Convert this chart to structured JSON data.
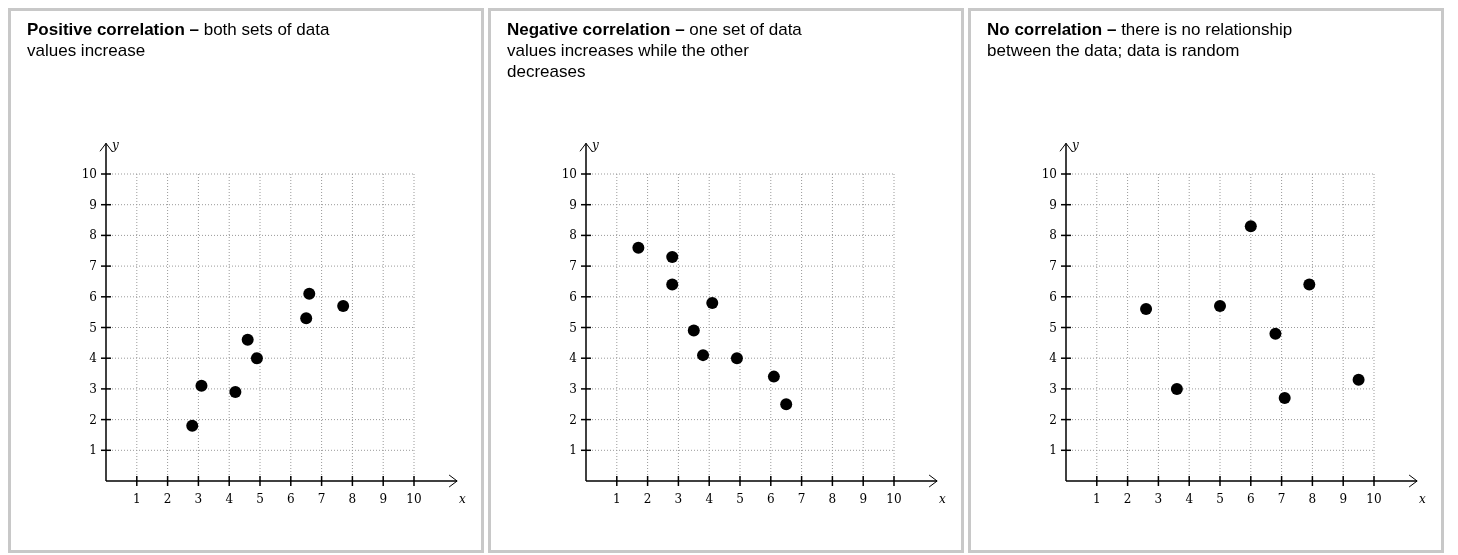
{
  "chart_data": [
    {
      "type": "scatter",
      "title": "Positive correlation – both sets of data values increase",
      "xlabel": "x",
      "ylabel": "y",
      "xlim": [
        0,
        11.4
      ],
      "ylim": [
        0,
        11
      ],
      "xticks": [
        1,
        2,
        3,
        4,
        5,
        6,
        7,
        8,
        9,
        10
      ],
      "yticks": [
        1,
        2,
        3,
        4,
        5,
        6,
        7,
        8,
        9,
        10
      ],
      "grid": true,
      "marker": "circle",
      "series": [
        {
          "color": "#000000",
          "x": [
            2.8,
            3.1,
            4.2,
            4.6,
            4.9,
            6.5,
            6.6,
            7.7
          ],
          "values": [
            1.8,
            3.1,
            2.9,
            4.6,
            4.0,
            5.3,
            6.1,
            5.7
          ]
        }
      ]
    },
    {
      "type": "scatter",
      "title": "Negative correlation – one set of data values increases while the other decreases",
      "xlabel": "x",
      "ylabel": "y",
      "xlim": [
        0,
        11.4
      ],
      "ylim": [
        0,
        11
      ],
      "xticks": [
        1,
        2,
        3,
        4,
        5,
        6,
        7,
        8,
        9,
        10
      ],
      "yticks": [
        1,
        2,
        3,
        4,
        5,
        6,
        7,
        8,
        9,
        10
      ],
      "grid": true,
      "marker": "circle",
      "series": [
        {
          "color": "#000000",
          "x": [
            1.7,
            2.8,
            2.8,
            3.5,
            3.8,
            4.1,
            4.9,
            6.1,
            6.5
          ],
          "values": [
            7.6,
            7.3,
            6.4,
            4.9,
            4.1,
            5.8,
            4.0,
            3.4,
            2.5
          ]
        }
      ]
    },
    {
      "type": "scatter",
      "title": "No correlation – there is no relationship between the data; data is random",
      "xlabel": "x",
      "ylabel": "y",
      "xlim": [
        0,
        11.4
      ],
      "ylim": [
        0,
        11
      ],
      "xticks": [
        1,
        2,
        3,
        4,
        5,
        6,
        7,
        8,
        9,
        10
      ],
      "yticks": [
        1,
        2,
        3,
        4,
        5,
        6,
        7,
        8,
        9,
        10
      ],
      "grid": true,
      "marker": "circle",
      "series": [
        {
          "color": "#000000",
          "x": [
            2.6,
            3.6,
            5.0,
            6.0,
            6.8,
            7.1,
            7.9,
            9.5
          ],
          "values": [
            5.6,
            3.0,
            5.7,
            8.3,
            4.8,
            2.7,
            6.4,
            3.3
          ]
        }
      ]
    }
  ]
}
